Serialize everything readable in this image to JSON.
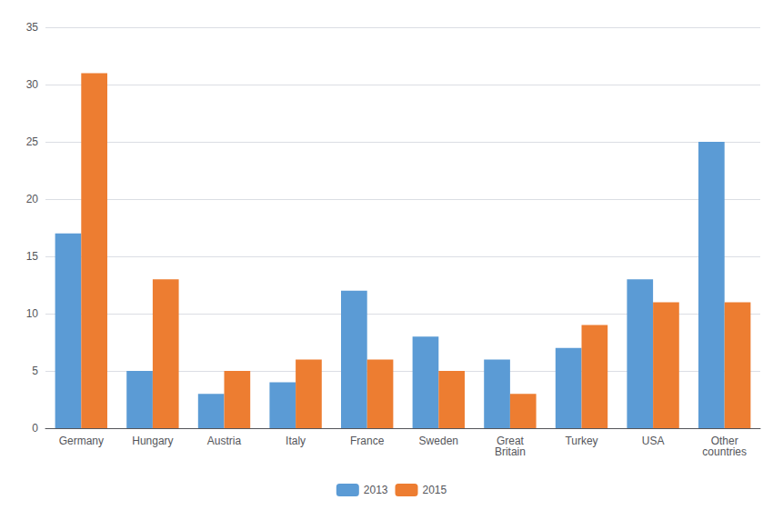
{
  "chart_data": {
    "type": "bar",
    "categories": [
      "Germany",
      "Hungary",
      "Austria",
      "Italy",
      "France",
      "Sweden",
      "Great\nBritain",
      "Turkey",
      "USA",
      "Other\ncountries"
    ],
    "series": [
      {
        "name": "2013",
        "color": "#5B9BD5",
        "values": [
          17,
          5,
          3,
          4,
          12,
          8,
          6,
          7,
          13,
          25
        ]
      },
      {
        "name": "2015",
        "color": "#ED7D31",
        "values": [
          31,
          13,
          5,
          6,
          6,
          5,
          3,
          9,
          11,
          11
        ]
      }
    ],
    "ylim": [
      0,
      35
    ],
    "yticks": [
      0,
      5,
      10,
      15,
      20,
      25,
      30,
      35
    ],
    "grid": true,
    "legend": "bottom"
  }
}
